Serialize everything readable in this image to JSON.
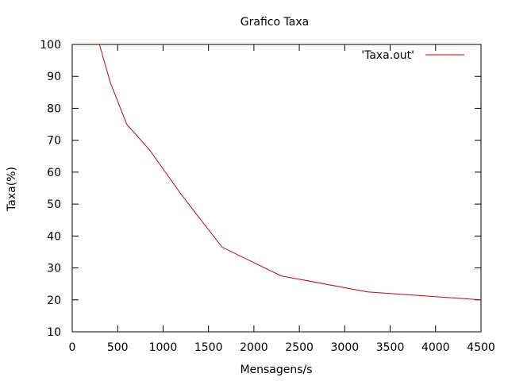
{
  "chart_data": {
    "type": "line",
    "title": "Grafico Taxa",
    "xlabel": "Mensagens/s",
    "ylabel": "Taxa(%)",
    "xlim": [
      0,
      4500
    ],
    "ylim": [
      10,
      100
    ],
    "xticks": [
      0,
      500,
      1000,
      1500,
      2000,
      2500,
      3000,
      3500,
      4000,
      4500
    ],
    "yticks": [
      10,
      20,
      30,
      40,
      50,
      60,
      70,
      80,
      90,
      100
    ],
    "grid": false,
    "legend_position": "top-right",
    "series": [
      {
        "name": "'Taxa.out'",
        "color": "#cc0000",
        "x": [
          300,
          420,
          600,
          850,
          1200,
          1650,
          2300,
          3250,
          4500
        ],
        "y": [
          100,
          88,
          75,
          67,
          53,
          36.5,
          27.5,
          22.5,
          20
        ]
      }
    ]
  }
}
